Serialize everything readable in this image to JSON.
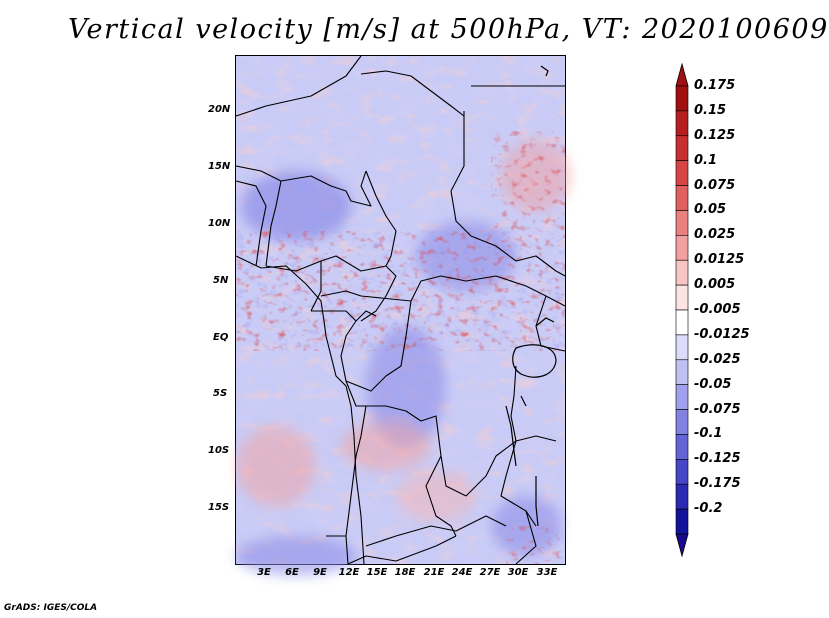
{
  "title": "Vertical velocity [m/s] at 500hPa, VT: 2020100609",
  "lat_labels": [
    "20N",
    "15N",
    "10N",
    "5N",
    "EQ",
    "5S",
    "10S",
    "15S"
  ],
  "lon_labels": [
    "3E",
    "6E",
    "9E",
    "12E",
    "15E",
    "18E",
    "21E",
    "24E",
    "27E",
    "30E",
    "33E"
  ],
  "colorbar": {
    "labels": [
      "0.175",
      "0.15",
      "0.125",
      "0.1",
      "0.075",
      "0.05",
      "0.025",
      "0.0125",
      "0.005",
      "-0.005",
      "-0.0125",
      "-0.025",
      "-0.05",
      "-0.075",
      "-0.1",
      "-0.125",
      "-0.175",
      "-0.2"
    ],
    "colors": [
      "#a01010",
      "#b51f1f",
      "#c83030",
      "#d54545",
      "#e06060",
      "#ea8080",
      "#f3a0a0",
      "#f9c4c4",
      "#fde4e4",
      "#ffffff",
      "#dcdcfa",
      "#c0c0f4",
      "#a0a0ec",
      "#8282e2",
      "#6464d6",
      "#4646c8",
      "#2a2ab4",
      "#12129a"
    ],
    "top_color": "#a01010",
    "bottom_color": "#1a0a90"
  },
  "footer": "GrADS: IGES/COLA"
}
